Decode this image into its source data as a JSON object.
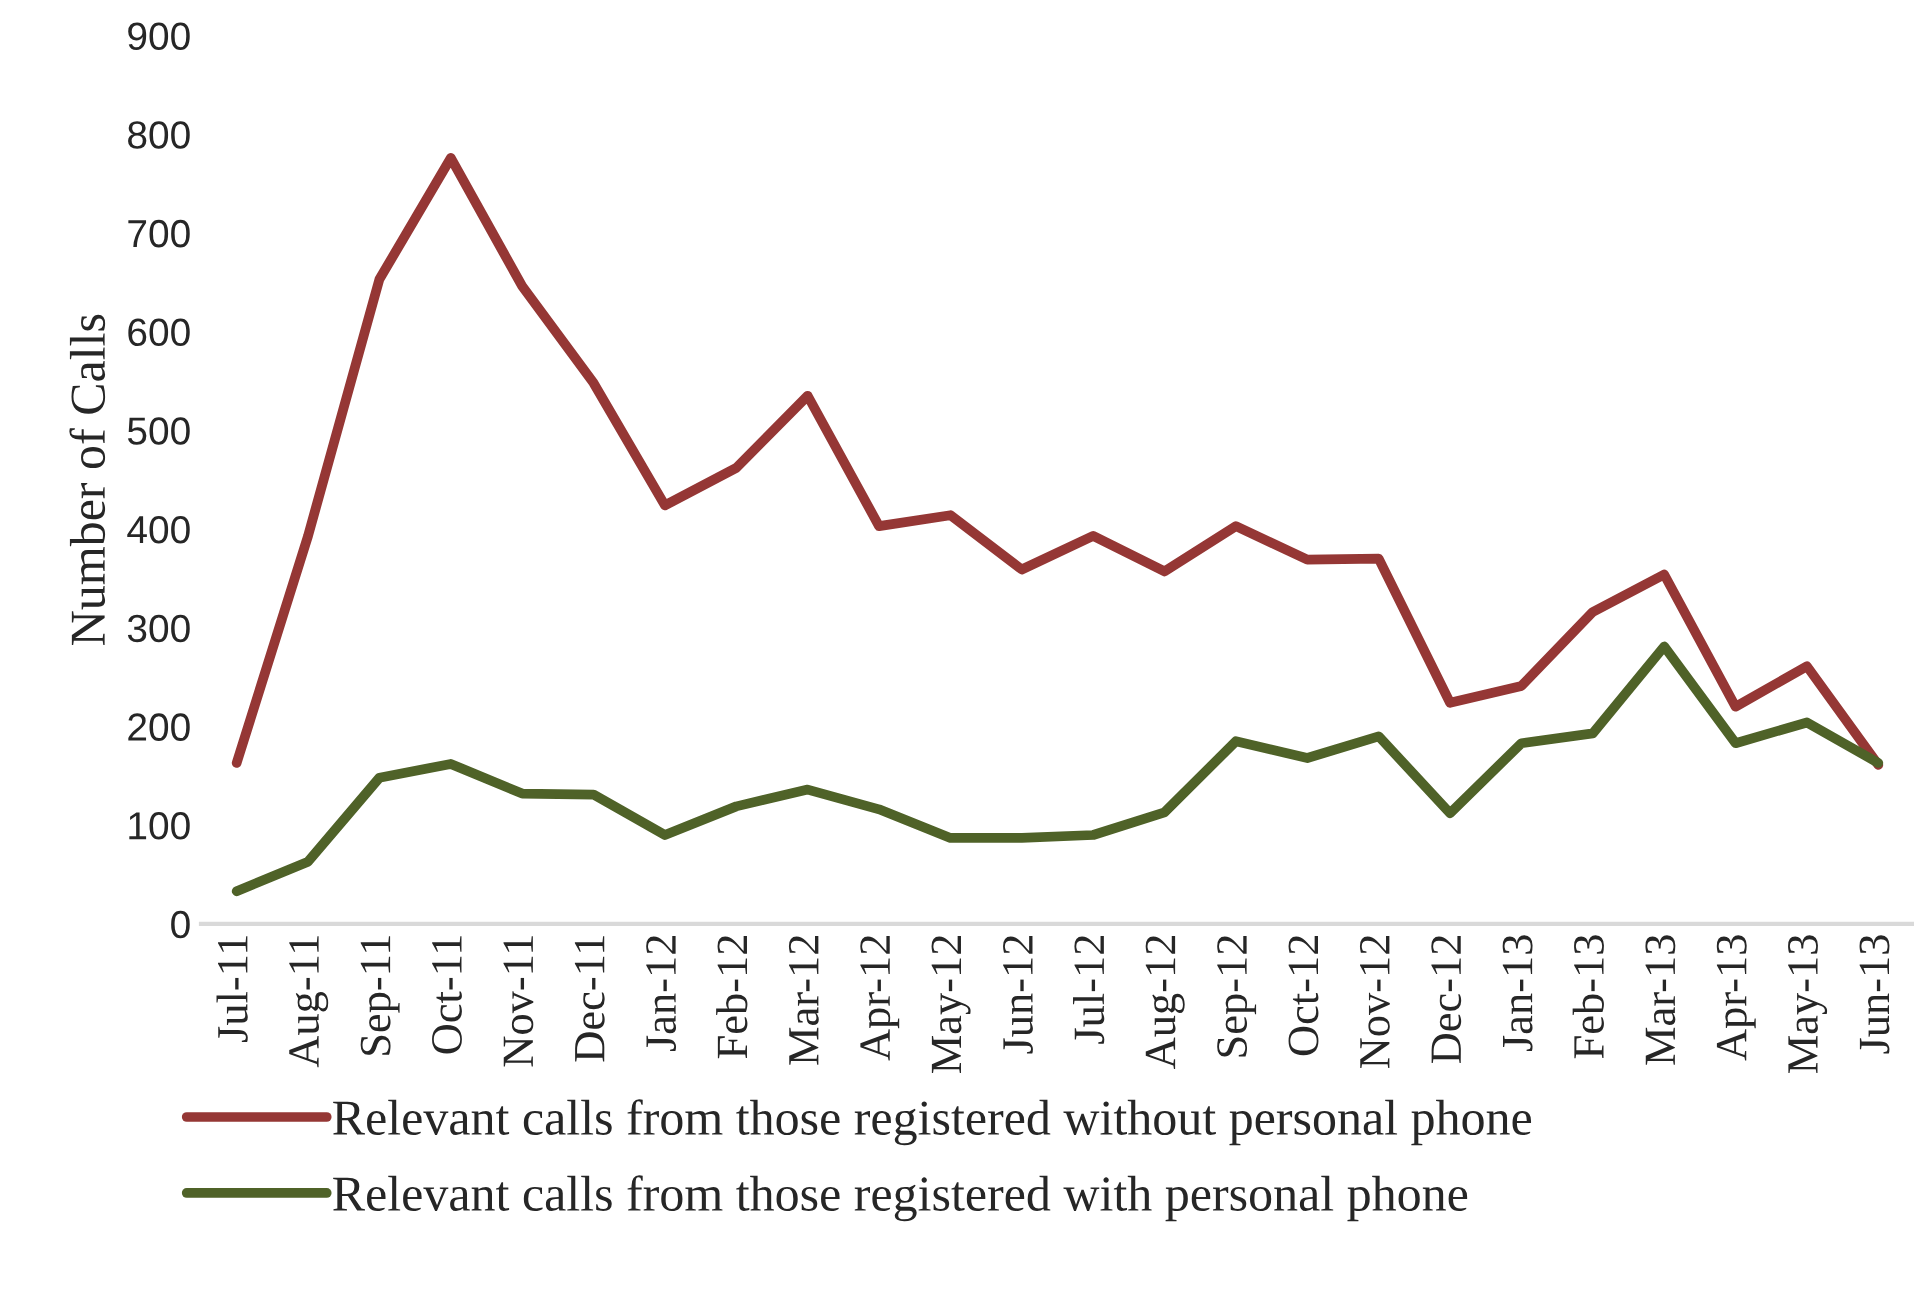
{
  "chart_data": {
    "type": "line",
    "ylabel": "Number of Calls",
    "categories": [
      "Jul-11",
      "Aug-11",
      "Sep-11",
      "Oct-11",
      "Nov-11",
      "Dec-11",
      "Jan-12",
      "Feb-12",
      "Mar-12",
      "Apr-12",
      "May-12",
      "Jun-12",
      "Jul-12",
      "Aug-12",
      "Sep-12",
      "Oct-12",
      "Nov-12",
      "Dec-12",
      "Jan-13",
      "Feb-13",
      "Mar-13",
      "Apr-13",
      "May-13",
      "Jun-13"
    ],
    "series": [
      {
        "name": "Relevant calls from those registered without personal phone",
        "color": "#953735",
        "values": [
          163,
          393,
          653,
          776,
          646,
          548,
          424,
          462,
          535,
          403,
          414,
          359,
          393,
          357,
          403,
          369,
          370,
          224,
          241,
          316,
          354,
          220,
          261,
          161
        ]
      },
      {
        "name": "Relevant calls from those registered with personal phone",
        "color": "#4f6228",
        "values": [
          33,
          63,
          148,
          162,
          132,
          131,
          90,
          119,
          136,
          116,
          87,
          87,
          90,
          113,
          185,
          168,
          190,
          112,
          183,
          193,
          281,
          183,
          204,
          163
        ]
      }
    ],
    "ylim": [
      0,
      900
    ],
    "yticks": [
      0,
      100,
      200,
      300,
      400,
      500,
      600,
      700,
      800,
      900
    ],
    "grid": false,
    "legend": "bottom",
    "marker": "none",
    "line_style": "solid"
  }
}
